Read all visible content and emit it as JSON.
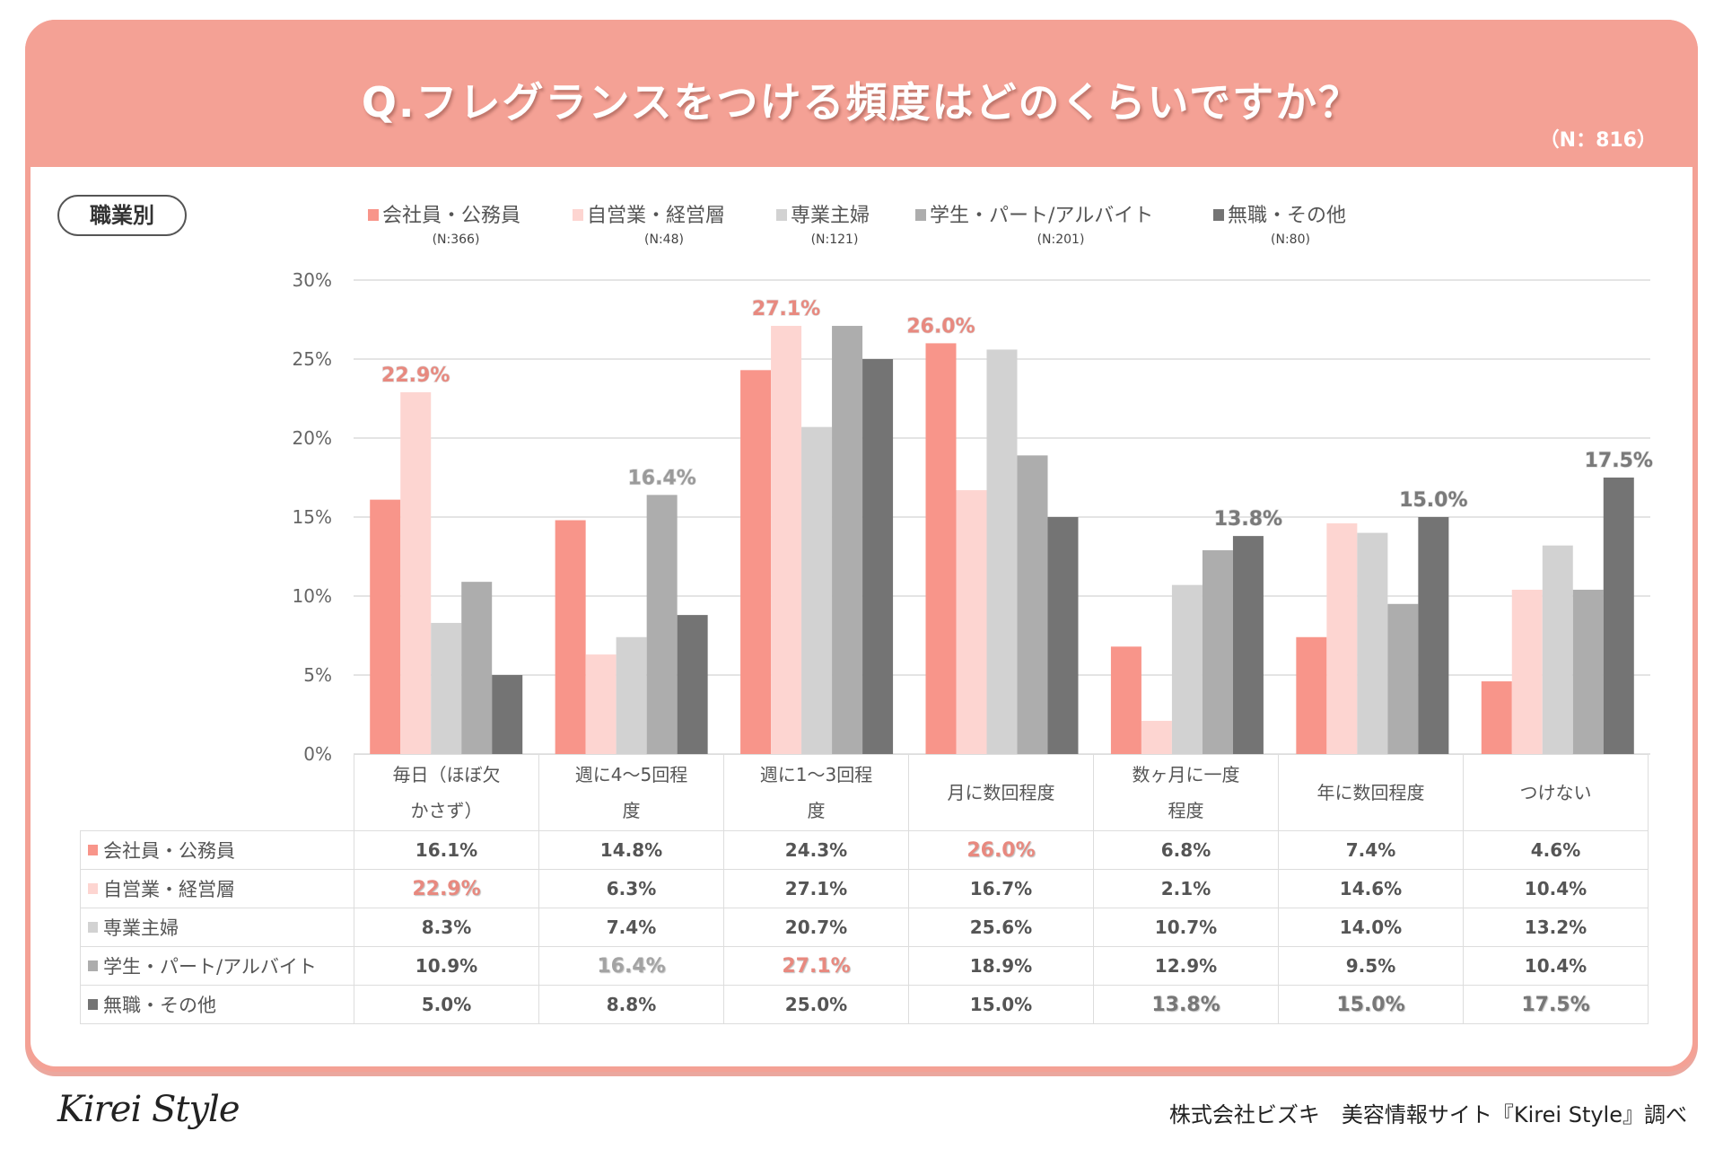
{
  "header": {
    "title": "Q.フレグランスをつける頻度はどのくらいですか？",
    "sample_size": "（N：816）"
  },
  "segment_label": "職業別",
  "colors": {
    "header_bg": "#f4a195",
    "series": [
      "#f8958a",
      "#fdd5d1",
      "#d2d2d2",
      "#adadad",
      "#747474"
    ],
    "highlight_pink": "#e8897f",
    "highlight_gray": "#9a9a9a"
  },
  "chart_data": {
    "type": "bar",
    "title": "Q.フレグランスをつける頻度はどのくらいですか？",
    "xlabel": "",
    "ylabel": "",
    "ylim": [
      0,
      30
    ],
    "yticks": [
      "0%",
      "5%",
      "10%",
      "15%",
      "20%",
      "25%",
      "30%"
    ],
    "ytick_values": [
      0,
      5,
      10,
      15,
      20,
      25,
      30
    ],
    "grid": true,
    "legend_position": "top",
    "categories": [
      "毎日（ほぼ欠かさず）",
      "週に4～5回程度",
      "週に1～3回程度",
      "月に数回程度",
      "数ヶ月に一度程度",
      "年に数回程度",
      "つけない"
    ],
    "category_lines": [
      [
        "毎日（ほぼ欠",
        "かさず）"
      ],
      [
        "週に4～5回程",
        "度"
      ],
      [
        "週に1～3回程",
        "度"
      ],
      [
        "月に数回程度"
      ],
      [
        "数ヶ月に一度",
        "程度"
      ],
      [
        "年に数回程度"
      ],
      [
        "つけない"
      ]
    ],
    "series": [
      {
        "name": "会社員・公務員",
        "n": "(N:366)",
        "values": [
          16.1,
          14.8,
          24.3,
          26.0,
          6.8,
          7.4,
          4.6
        ]
      },
      {
        "name": "自営業・経営層",
        "n": "(N:48)",
        "values": [
          22.9,
          6.3,
          27.1,
          16.7,
          2.1,
          14.6,
          10.4
        ]
      },
      {
        "name": "専業主婦",
        "n": "(N:121)",
        "values": [
          8.3,
          7.4,
          20.7,
          25.6,
          10.7,
          14.0,
          13.2
        ]
      },
      {
        "name": "学生・パート/アルバイト",
        "n": "(N:201)",
        "values": [
          10.9,
          16.4,
          27.1,
          18.9,
          12.9,
          9.5,
          10.4
        ]
      },
      {
        "name": "無職・その他",
        "n": "(N:80)",
        "values": [
          5.0,
          8.8,
          25.0,
          15.0,
          13.8,
          15.0,
          17.5
        ]
      }
    ],
    "data_labels": [
      {
        "category": 0,
        "series": 1,
        "text": "22.9%",
        "color": "pink"
      },
      {
        "category": 1,
        "series": 3,
        "text": "16.4%",
        "color": "gray"
      },
      {
        "category": 2,
        "series": 1,
        "text": "27.1%",
        "color": "pink"
      },
      {
        "category": 3,
        "series": 0,
        "text": "26.0%",
        "color": "pink"
      },
      {
        "category": 4,
        "series": 4,
        "text": "13.8%",
        "color": "dark"
      },
      {
        "category": 5,
        "series": 4,
        "text": "15.0%",
        "color": "dark"
      },
      {
        "category": 6,
        "series": 4,
        "text": "17.5%",
        "color": "dark"
      }
    ]
  },
  "table": {
    "rows": [
      {
        "label": "会社員・公務員",
        "cells": [
          "16.1%",
          "14.8%",
          "24.3%",
          "26.0%",
          "6.8%",
          "7.4%",
          "4.6%"
        ],
        "highlight": [
          null,
          null,
          null,
          "pink",
          null,
          null,
          null
        ]
      },
      {
        "label": "自営業・経営層",
        "cells": [
          "22.9%",
          "6.3%",
          "27.1%",
          "16.7%",
          "2.1%",
          "14.6%",
          "10.4%"
        ],
        "highlight": [
          "pink",
          null,
          null,
          null,
          null,
          null,
          null
        ]
      },
      {
        "label": "専業主婦",
        "cells": [
          "8.3%",
          "7.4%",
          "20.7%",
          "25.6%",
          "10.7%",
          "14.0%",
          "13.2%"
        ],
        "highlight": [
          null,
          null,
          null,
          null,
          null,
          null,
          null
        ]
      },
      {
        "label": "学生・パート/アルバイト",
        "cells": [
          "10.9%",
          "16.4%",
          "27.1%",
          "18.9%",
          "12.9%",
          "9.5%",
          "10.4%"
        ],
        "highlight": [
          null,
          "gray",
          "pink",
          null,
          null,
          null,
          null
        ]
      },
      {
        "label": "無職・その他",
        "cells": [
          "5.0%",
          "8.8%",
          "25.0%",
          "15.0%",
          "13.8%",
          "15.0%",
          "17.5%"
        ],
        "highlight": [
          null,
          null,
          null,
          null,
          "dark",
          "dark",
          "dark"
        ]
      }
    ]
  },
  "footer": {
    "logo": "Kirei Style",
    "credit": "株式会社ビズキ　美容情報サイト『Kirei Style』調べ"
  }
}
